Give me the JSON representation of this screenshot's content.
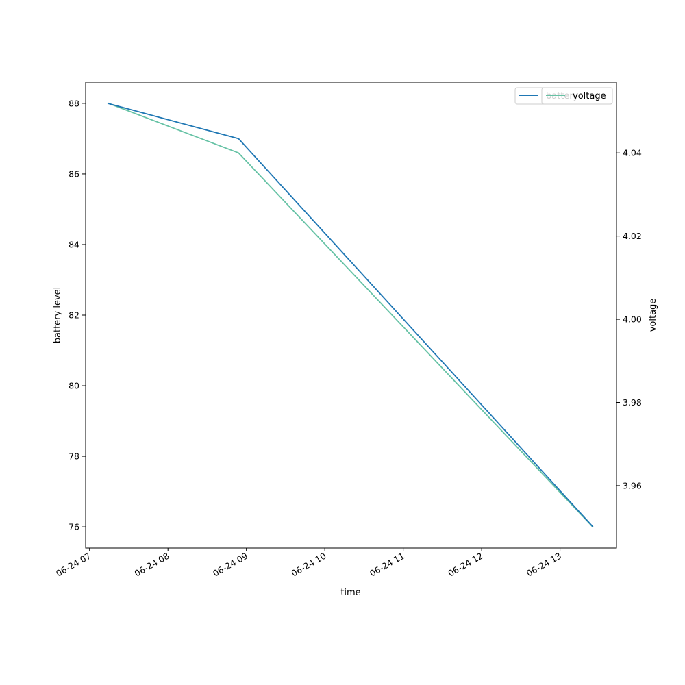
{
  "chart_data": {
    "type": "line",
    "xlabel": "time",
    "ylabel_left": "battery level",
    "ylabel_right": "voltage",
    "x_ticks": [
      "06-24 07",
      "06-24 08",
      "06-24 09",
      "06-24 10",
      "06-24 11",
      "06-24 12",
      "06-24 13"
    ],
    "x_tick_hours": [
      7,
      8,
      9,
      10,
      11,
      12,
      13
    ],
    "xlim_hours": [
      6.95,
      13.72
    ],
    "ylim_left": [
      75.4,
      88.6
    ],
    "ylim_right": [
      3.945,
      4.057
    ],
    "y_ticks_left": [
      "76",
      "78",
      "80",
      "82",
      "84",
      "86",
      "88"
    ],
    "y_ticks_left_values": [
      76,
      78,
      80,
      82,
      84,
      86,
      88
    ],
    "y_ticks_right": [
      "3.96",
      "3.98",
      "4.00",
      "4.02",
      "4.04"
    ],
    "y_ticks_right_values": [
      3.96,
      3.98,
      4.0,
      4.02,
      4.04
    ],
    "series": [
      {
        "name": "battery",
        "axis": "left",
        "color": "#1f77b4",
        "x": [
          "06-24 07:14",
          "06-24 08:54",
          "06-24 13:25"
        ],
        "x_hours": [
          7.23,
          8.9,
          13.42
        ],
        "values": [
          88,
          87,
          76
        ]
      },
      {
        "name": "voltage",
        "axis": "right",
        "color": "#66c2a5",
        "x": [
          "06-24 07:14",
          "06-24 08:54",
          "06-24 13:25"
        ],
        "x_hours": [
          7.23,
          8.9,
          13.42
        ],
        "values": [
          4.052,
          4.04,
          3.95
        ]
      }
    ],
    "legend_placement": "top-right",
    "grid": false
  }
}
